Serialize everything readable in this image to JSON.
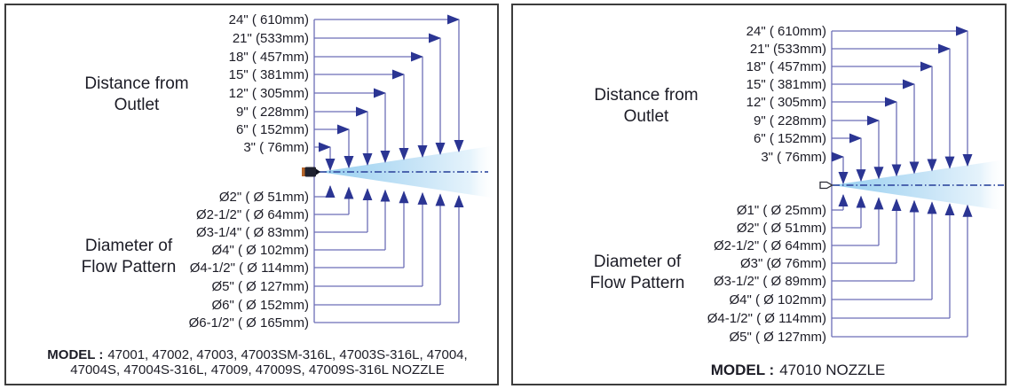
{
  "figure_title": "Nozzle flow pattern diagrams",
  "colors": {
    "leader_line": "#6c6eb6",
    "arrowhead": "#2b3593",
    "centerline": "#3c55a6",
    "cone_blue": "#8ccaee",
    "text": "#1c1c26",
    "panel_border": "#3d3d3d",
    "nozzle_accent_orange": "#b5652a"
  },
  "panels": [
    {
      "distance_heading_line1": "Distance from",
      "distance_heading_line2": "Outlet",
      "diameter_heading_line1": "Diameter of",
      "diameter_heading_line2": "Flow Pattern",
      "distances": [
        "24\" ( 610mm)",
        "21\" (533mm)",
        "18\" ( 457mm)",
        "15\" ( 381mm)",
        "12\" ( 305mm)",
        "9\" ( 228mm)",
        "6\" ( 152mm)",
        "3\" ( 76mm)"
      ],
      "diameters": [
        "Ø2\" ( Ø 51mm)",
        "Ø2-1/2\" ( Ø 64mm)",
        "Ø3-1/4\" ( Ø 83mm)",
        "Ø4\" ( Ø 102mm)",
        "Ø4-1/2\" ( Ø 114mm)",
        "Ø5\" ( Ø 127mm)",
        "Ø6\" ( Ø 152mm)",
        "Ø6-1/2\" ( Ø 165mm)"
      ],
      "model_label": "MODEL :",
      "model_values_line1": "47001, 47002, 47003, 47003SM-316L, 47003S-316L, 47004,",
      "model_values_line2": "47004S, 47004S-316L, 47009, 47009S, 47009S-316L NOZZLE"
    },
    {
      "distance_heading_line1": "Distance from",
      "distance_heading_line2": "Outlet",
      "diameter_heading_line1": "Diameter of",
      "diameter_heading_line2": "Flow Pattern",
      "distances": [
        "24\" ( 610mm)",
        "21\" (533mm)",
        "18\" ( 457mm)",
        "15\" ( 381mm)",
        "12\" ( 305mm)",
        "9\" ( 228mm)",
        "6\" ( 152mm)",
        "3\" ( 76mm)"
      ],
      "diameters": [
        "Ø1\" ( Ø 25mm)",
        "Ø2\" ( Ø 51mm)",
        "Ø2-1/2\" ( Ø 64mm)",
        "Ø3\" (Ø 76mm)",
        "Ø3-1/2\" ( Ø 89mm)",
        "Ø4\" ( Ø 102mm)",
        "Ø4-1/2\" ( Ø 114mm)",
        "Ø5\" ( Ø 127mm)"
      ],
      "model_label": "MODEL :",
      "model_values_line1": "47010 NOZZLE"
    }
  ]
}
